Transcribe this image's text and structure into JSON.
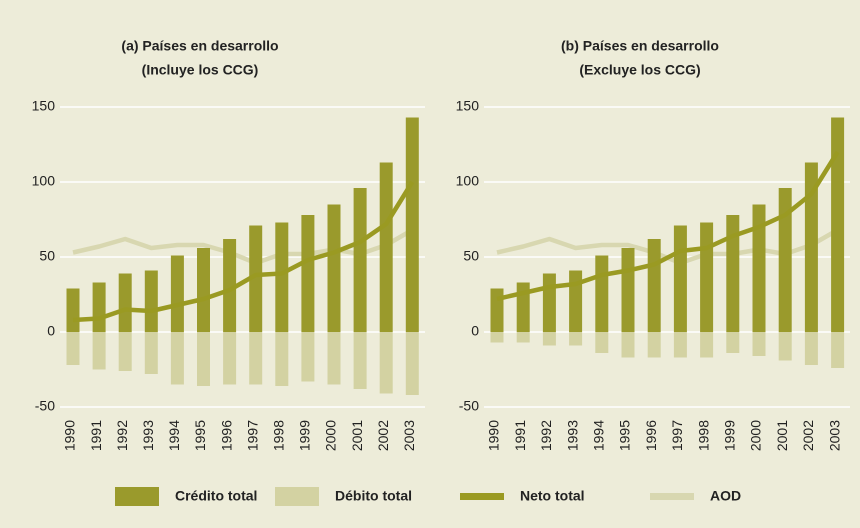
{
  "chart_data": [
    {
      "type": "bar",
      "title": "(a) Países en desarrollo",
      "subtitle": "(Incluye los CCG)",
      "categories": [
        "1990",
        "1991",
        "1992",
        "1993",
        "1994",
        "1995",
        "1996",
        "1997",
        "1998",
        "1999",
        "2000",
        "2001",
        "2002",
        "2003"
      ],
      "ylim": [
        -55,
        160
      ],
      "yticks": [
        -50,
        0,
        50,
        100,
        150
      ],
      "grid": true,
      "series": [
        {
          "name": "Crédito total",
          "type": "bar",
          "color": "#9a9a2c",
          "values": [
            29,
            33,
            39,
            41,
            51,
            56,
            62,
            71,
            73,
            78,
            85,
            96,
            113,
            143
          ]
        },
        {
          "name": "Débito total",
          "type": "bar",
          "color": "#d3d2a2",
          "values": [
            -22,
            -25,
            -26,
            -28,
            -35,
            -36,
            -35,
            -35,
            -36,
            -33,
            -35,
            -38,
            -41,
            -42
          ]
        },
        {
          "name": "Neto total",
          "type": "line",
          "color": "#9a9a22",
          "values": [
            8,
            9,
            15,
            14,
            18,
            22,
            28,
            38,
            39,
            48,
            53,
            60,
            72,
            100
          ]
        },
        {
          "name": "AOD",
          "type": "line",
          "color": "#d8d7b0",
          "values": [
            53,
            57,
            62,
            56,
            58,
            58,
            53,
            46,
            52,
            52,
            55,
            52,
            58,
            68
          ]
        }
      ]
    },
    {
      "type": "bar",
      "title": "(b) Países en desarrollo",
      "subtitle": "(Excluye los CCG)",
      "categories": [
        "1990",
        "1991",
        "1992",
        "1993",
        "1994",
        "1995",
        "1996",
        "1997",
        "1998",
        "1999",
        "2000",
        "2001",
        "2002",
        "2003"
      ],
      "ylim": [
        -55,
        160
      ],
      "yticks": [
        -50,
        0,
        50,
        100,
        150
      ],
      "grid": true,
      "series": [
        {
          "name": "Crédito total",
          "type": "bar",
          "color": "#9a9a2c",
          "values": [
            29,
            33,
            39,
            41,
            51,
            56,
            62,
            71,
            73,
            78,
            85,
            96,
            113,
            143
          ]
        },
        {
          "name": "Débito total",
          "type": "bar",
          "color": "#d3d2a2",
          "values": [
            -7,
            -7,
            -9,
            -9,
            -14,
            -17,
            -17,
            -17,
            -17,
            -14,
            -16,
            -19,
            -22,
            -24
          ]
        },
        {
          "name": "Neto total",
          "type": "line",
          "color": "#9a9a22",
          "values": [
            22,
            26,
            30,
            32,
            38,
            41,
            45,
            54,
            56,
            64,
            70,
            78,
            92,
            120
          ]
        },
        {
          "name": "AOD",
          "type": "line",
          "color": "#d8d7b0",
          "values": [
            53,
            57,
            62,
            56,
            58,
            58,
            53,
            46,
            52,
            52,
            55,
            52,
            58,
            68
          ]
        }
      ]
    }
  ]
}
